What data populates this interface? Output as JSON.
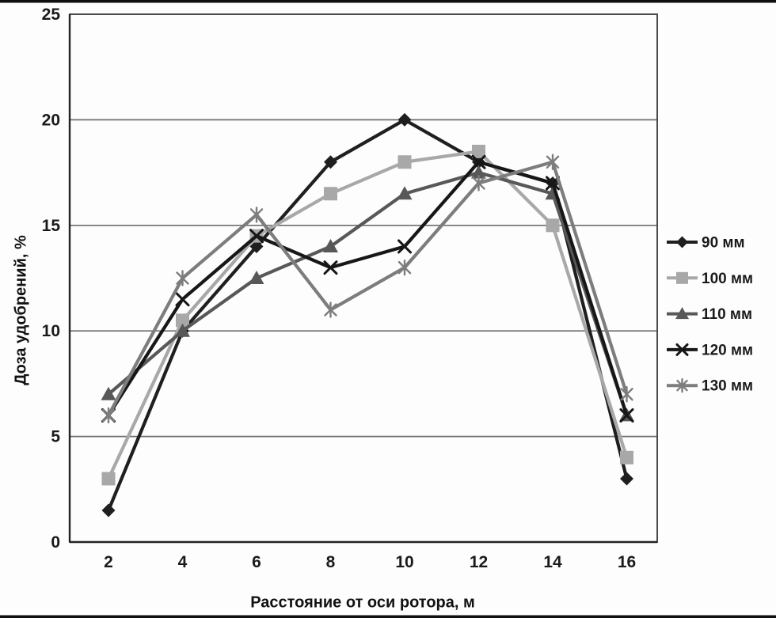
{
  "figure": {
    "background": "#fdfdfd",
    "frame_color": "#101010",
    "plot_border_color": "#4b4b4b",
    "gridline_color": "#6e6e6e",
    "axis_color": "#222222",
    "tick_label_color": "#1a1a1a"
  },
  "chart_data": {
    "type": "line",
    "title": "",
    "xlabel": "Расстояние от оси ротора, м",
    "ylabel": "Доза удобрений, %",
    "x": [
      2,
      4,
      6,
      8,
      10,
      12,
      14,
      16
    ],
    "x_ticks": [
      "2",
      "4",
      "6",
      "8",
      "10",
      "12",
      "14",
      "16"
    ],
    "y_ticks": [
      "0",
      "5",
      "10",
      "15",
      "20",
      "25"
    ],
    "ylim": [
      0,
      25
    ],
    "xlim_categories": 8,
    "grid": "horizontal",
    "legend_position": "right",
    "series": [
      {
        "name": "90 мм",
        "marker": "diamond",
        "color": "#1f1f1f",
        "values": [
          1.5,
          10,
          14,
          18,
          20,
          18,
          17,
          3
        ]
      },
      {
        "name": "100 мм",
        "marker": "square",
        "color": "#a8a8a8",
        "values": [
          3,
          10.5,
          14.5,
          16.5,
          18,
          18.5,
          15,
          4
        ]
      },
      {
        "name": "110 мм",
        "marker": "triangle",
        "color": "#585858",
        "values": [
          7,
          10,
          12.5,
          14,
          16.5,
          17.5,
          16.5,
          6
        ]
      },
      {
        "name": "120 мм",
        "marker": "x",
        "color": "#171717",
        "values": [
          6,
          11.5,
          14.5,
          13,
          14,
          18,
          17,
          6
        ]
      },
      {
        "name": "130 мм",
        "marker": "asterisk",
        "color": "#7d7d7d",
        "values": [
          6,
          12.5,
          15.5,
          11,
          13,
          17,
          18,
          7
        ]
      }
    ]
  }
}
